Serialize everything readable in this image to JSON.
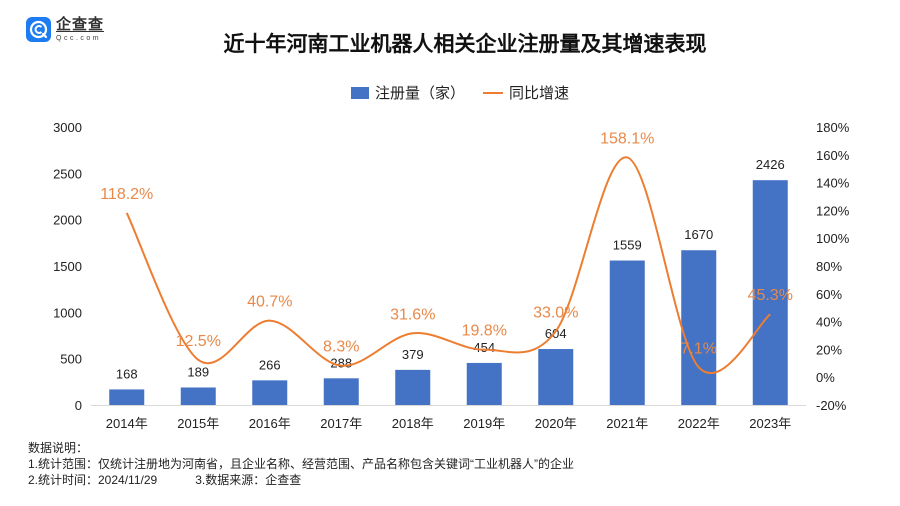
{
  "logo": {
    "cn": "企查查",
    "en": "Qcc.com",
    "icon": "qcc-logo-icon",
    "brand_color": "#1e7cf2"
  },
  "notes": {
    "heading": "数据说明：",
    "line1": "1.统计范围：仅统计注册地为河南省，且企业名称、经营范围、产品名称包含关键词“工业机器人”的企业",
    "line2a": "2.统计时间：2024/11/29",
    "line2b": "3.数据来源：企查查"
  },
  "chart_data": {
    "type": "bar",
    "title": "近十年河南工业机器人相关企业注册量及其增速表现",
    "legend_position": "top-center",
    "categories": [
      "2014年",
      "2015年",
      "2016年",
      "2017年",
      "2018年",
      "2019年",
      "2020年",
      "2021年",
      "2022年",
      "2023年"
    ],
    "series": [
      {
        "name": "注册量（家）",
        "kind": "bar",
        "axis": "left",
        "color": "#4472c4",
        "values": [
          168,
          189,
          266,
          288,
          379,
          454,
          604,
          1559,
          1670,
          2426
        ],
        "labels": [
          "168",
          "189",
          "266",
          "288",
          "379",
          "454",
          "604",
          "1559",
          "1670",
          "2426"
        ]
      },
      {
        "name": "同比增速",
        "kind": "line",
        "axis": "right",
        "color": "#ed7d31",
        "smooth": true,
        "values": [
          118.2,
          12.5,
          40.7,
          8.3,
          31.6,
          19.8,
          33.0,
          158.1,
          7.1,
          45.3
        ],
        "labels": [
          "118.2%",
          "12.5%",
          "40.7%",
          "8.3%",
          "31.6%",
          "19.8%",
          "33.0%",
          "158.1%",
          "7.1%",
          "45.3%"
        ]
      }
    ],
    "y_left": {
      "min": 0,
      "max": 3000,
      "ticks": [
        "0",
        "500",
        "1000",
        "1500",
        "2000",
        "2500",
        "3000"
      ]
    },
    "y_right": {
      "min": -20,
      "max": 180,
      "ticks": [
        "-20%",
        "0%",
        "20%",
        "40%",
        "60%",
        "80%",
        "100%",
        "120%",
        "140%",
        "160%",
        "180%"
      ]
    },
    "xlabel": "",
    "ylabel": "",
    "grid": false
  }
}
